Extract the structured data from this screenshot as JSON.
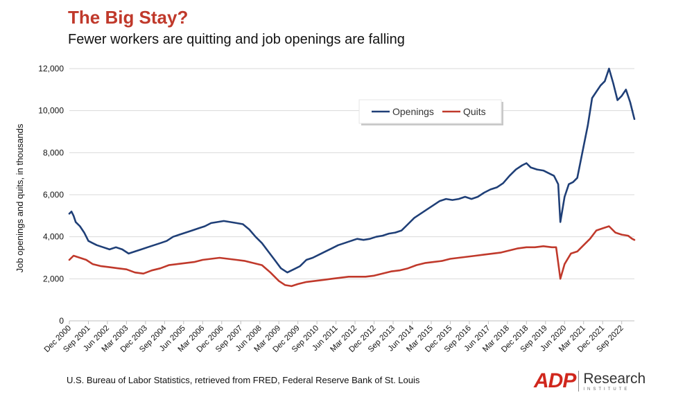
{
  "header": {
    "title": "The Big Stay?",
    "subtitle": "Fewer workers are quitting and job openings are falling"
  },
  "footer": {
    "source": "U.S. Bureau of Labor Statistics, retrieved from FRED, Federal Reserve Bank of St. Louis",
    "logo_brand": "ADP",
    "logo_line1": "Research",
    "logo_line2": "INSTITUTE"
  },
  "colors": {
    "openings": "#1f3f77",
    "quits": "#c0392b",
    "title": "#c0392b"
  },
  "chart_data": {
    "type": "line",
    "title": "The Big Stay?",
    "subtitle": "Fewer workers are quitting and job openings are falling",
    "xlabel": "",
    "ylabel": "Job openings and quits, in thousands",
    "x_start": "2000-12",
    "x_end": "2023-03",
    "x_ticks": [
      "Dec 2000",
      "Sep 2001",
      "Jun 2002",
      "Mar 2003",
      "Dec 2003",
      "Sep 2004",
      "Jun 2005",
      "Mar 2006",
      "Dec 2006",
      "Sep 2007",
      "Jun 2008",
      "Mar 2009",
      "Dec 2009",
      "Sep 2010",
      "Jun 2011",
      "Mar 2012",
      "Dec 2012",
      "Sep 2013",
      "Jun 2014",
      "Mar 2015",
      "Dec 2015",
      "Sep 2016",
      "Jun 2017",
      "Mar 2018",
      "Dec 2018",
      "Sep 2019",
      "Jun 2020",
      "Mar 2021",
      "Dec 2021",
      "Sep 2022"
    ],
    "y_ticks": [
      "0",
      "2,000",
      "4,000",
      "6,000",
      "8,000",
      "10,000",
      "12,000"
    ],
    "ylim": [
      0,
      12000
    ],
    "grid": true,
    "legend_position": "top-right",
    "series": [
      {
        "name": "Openings",
        "color": "#1f3f77",
        "points": [
          [
            "2000-12",
            5100
          ],
          [
            "2001-01",
            5200
          ],
          [
            "2001-02",
            5000
          ],
          [
            "2001-03",
            4700
          ],
          [
            "2001-05",
            4500
          ],
          [
            "2001-07",
            4200
          ],
          [
            "2001-09",
            3800
          ],
          [
            "2001-11",
            3700
          ],
          [
            "2002-01",
            3600
          ],
          [
            "2002-04",
            3500
          ],
          [
            "2002-07",
            3400
          ],
          [
            "2002-10",
            3500
          ],
          [
            "2003-01",
            3400
          ],
          [
            "2003-04",
            3200
          ],
          [
            "2003-07",
            3300
          ],
          [
            "2003-10",
            3400
          ],
          [
            "2004-01",
            3500
          ],
          [
            "2004-04",
            3600
          ],
          [
            "2004-07",
            3700
          ],
          [
            "2004-10",
            3800
          ],
          [
            "2005-01",
            4000
          ],
          [
            "2005-04",
            4100
          ],
          [
            "2005-07",
            4200
          ],
          [
            "2005-10",
            4300
          ],
          [
            "2006-01",
            4400
          ],
          [
            "2006-04",
            4500
          ],
          [
            "2006-07",
            4650
          ],
          [
            "2006-10",
            4700
          ],
          [
            "2007-01",
            4750
          ],
          [
            "2007-04",
            4700
          ],
          [
            "2007-07",
            4650
          ],
          [
            "2007-10",
            4600
          ],
          [
            "2008-01",
            4350
          ],
          [
            "2008-04",
            4000
          ],
          [
            "2008-07",
            3700
          ],
          [
            "2008-10",
            3300
          ],
          [
            "2009-01",
            2900
          ],
          [
            "2009-04",
            2500
          ],
          [
            "2009-07",
            2300
          ],
          [
            "2009-10",
            2450
          ],
          [
            "2010-01",
            2600
          ],
          [
            "2010-04",
            2900
          ],
          [
            "2010-07",
            3000
          ],
          [
            "2010-10",
            3150
          ],
          [
            "2011-01",
            3300
          ],
          [
            "2011-04",
            3450
          ],
          [
            "2011-07",
            3600
          ],
          [
            "2011-10",
            3700
          ],
          [
            "2012-01",
            3800
          ],
          [
            "2012-04",
            3900
          ],
          [
            "2012-07",
            3850
          ],
          [
            "2012-10",
            3900
          ],
          [
            "2013-01",
            4000
          ],
          [
            "2013-04",
            4050
          ],
          [
            "2013-07",
            4150
          ],
          [
            "2013-10",
            4200
          ],
          [
            "2014-01",
            4300
          ],
          [
            "2014-04",
            4600
          ],
          [
            "2014-07",
            4900
          ],
          [
            "2014-10",
            5100
          ],
          [
            "2015-01",
            5300
          ],
          [
            "2015-04",
            5500
          ],
          [
            "2015-07",
            5700
          ],
          [
            "2015-10",
            5800
          ],
          [
            "2016-01",
            5750
          ],
          [
            "2016-04",
            5800
          ],
          [
            "2016-07",
            5900
          ],
          [
            "2016-10",
            5800
          ],
          [
            "2017-01",
            5900
          ],
          [
            "2017-04",
            6100
          ],
          [
            "2017-07",
            6250
          ],
          [
            "2017-10",
            6350
          ],
          [
            "2018-01",
            6550
          ],
          [
            "2018-04",
            6900
          ],
          [
            "2018-07",
            7200
          ],
          [
            "2018-10",
            7400
          ],
          [
            "2018-12",
            7500
          ],
          [
            "2019-02",
            7300
          ],
          [
            "2019-05",
            7200
          ],
          [
            "2019-08",
            7150
          ],
          [
            "2019-11",
            7000
          ],
          [
            "2020-01",
            6900
          ],
          [
            "2020-03",
            6500
          ],
          [
            "2020-04",
            4700
          ],
          [
            "2020-06",
            5900
          ],
          [
            "2020-08",
            6500
          ],
          [
            "2020-10",
            6600
          ],
          [
            "2020-12",
            6800
          ],
          [
            "2021-03",
            8300
          ],
          [
            "2021-05",
            9300
          ],
          [
            "2021-07",
            10600
          ],
          [
            "2021-09",
            10900
          ],
          [
            "2021-11",
            11200
          ],
          [
            "2022-01",
            11400
          ],
          [
            "2022-03",
            12000
          ],
          [
            "2022-05",
            11300
          ],
          [
            "2022-07",
            10500
          ],
          [
            "2022-09",
            10700
          ],
          [
            "2022-11",
            11000
          ],
          [
            "2023-01",
            10400
          ],
          [
            "2023-03",
            9600
          ]
        ]
      },
      {
        "name": "Quits",
        "color": "#c0392b",
        "points": [
          [
            "2000-12",
            2900
          ],
          [
            "2001-02",
            3100
          ],
          [
            "2001-05",
            3000
          ],
          [
            "2001-08",
            2900
          ],
          [
            "2001-11",
            2700
          ],
          [
            "2002-03",
            2600
          ],
          [
            "2002-07",
            2550
          ],
          [
            "2002-11",
            2500
          ],
          [
            "2003-03",
            2450
          ],
          [
            "2003-07",
            2300
          ],
          [
            "2003-11",
            2250
          ],
          [
            "2004-03",
            2400
          ],
          [
            "2004-07",
            2500
          ],
          [
            "2004-11",
            2650
          ],
          [
            "2005-03",
            2700
          ],
          [
            "2005-07",
            2750
          ],
          [
            "2005-11",
            2800
          ],
          [
            "2006-03",
            2900
          ],
          [
            "2006-07",
            2950
          ],
          [
            "2006-11",
            3000
          ],
          [
            "2007-03",
            2950
          ],
          [
            "2007-07",
            2900
          ],
          [
            "2007-11",
            2850
          ],
          [
            "2008-03",
            2750
          ],
          [
            "2008-07",
            2650
          ],
          [
            "2008-11",
            2300
          ],
          [
            "2009-03",
            1900
          ],
          [
            "2009-06",
            1700
          ],
          [
            "2009-09",
            1650
          ],
          [
            "2009-12",
            1750
          ],
          [
            "2010-04",
            1850
          ],
          [
            "2010-08",
            1900
          ],
          [
            "2010-12",
            1950
          ],
          [
            "2011-04",
            2000
          ],
          [
            "2011-08",
            2050
          ],
          [
            "2011-12",
            2100
          ],
          [
            "2012-04",
            2100
          ],
          [
            "2012-08",
            2100
          ],
          [
            "2012-12",
            2150
          ],
          [
            "2013-04",
            2250
          ],
          [
            "2013-08",
            2350
          ],
          [
            "2013-12",
            2400
          ],
          [
            "2014-04",
            2500
          ],
          [
            "2014-08",
            2650
          ],
          [
            "2014-12",
            2750
          ],
          [
            "2015-04",
            2800
          ],
          [
            "2015-08",
            2850
          ],
          [
            "2015-12",
            2950
          ],
          [
            "2016-04",
            3000
          ],
          [
            "2016-08",
            3050
          ],
          [
            "2016-12",
            3100
          ],
          [
            "2017-04",
            3150
          ],
          [
            "2017-08",
            3200
          ],
          [
            "2017-12",
            3250
          ],
          [
            "2018-04",
            3350
          ],
          [
            "2018-08",
            3450
          ],
          [
            "2018-12",
            3500
          ],
          [
            "2019-04",
            3500
          ],
          [
            "2019-08",
            3550
          ],
          [
            "2019-12",
            3500
          ],
          [
            "2020-02",
            3500
          ],
          [
            "2020-04",
            2000
          ],
          [
            "2020-06",
            2700
          ],
          [
            "2020-09",
            3200
          ],
          [
            "2020-12",
            3300
          ],
          [
            "2021-03",
            3600
          ],
          [
            "2021-06",
            3900
          ],
          [
            "2021-09",
            4300
          ],
          [
            "2021-12",
            4400
          ],
          [
            "2022-03",
            4500
          ],
          [
            "2022-06",
            4200
          ],
          [
            "2022-09",
            4100
          ],
          [
            "2022-12",
            4050
          ],
          [
            "2023-02",
            3900
          ],
          [
            "2023-03",
            3850
          ]
        ]
      }
    ]
  }
}
